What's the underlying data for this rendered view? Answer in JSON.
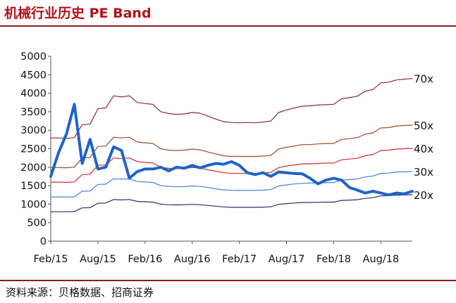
{
  "title": "机械行业历史 PE Band",
  "source": "资料来源：贝格数据、招商证券",
  "chart_data": {
    "type": "line",
    "x": [
      "Feb/15",
      "Mar/15",
      "Apr/15",
      "May/15",
      "Jun/15",
      "Jul/15",
      "Aug/15",
      "Sep/15",
      "Oct/15",
      "Nov/15",
      "Dec/15",
      "Jan/16",
      "Feb/16",
      "Mar/16",
      "Apr/16",
      "May/16",
      "Jun/16",
      "Jul/16",
      "Aug/16",
      "Sep/16",
      "Oct/16",
      "Nov/16",
      "Dec/16",
      "Jan/17",
      "Feb/17",
      "Mar/17",
      "Apr/17",
      "May/17",
      "Jun/17",
      "Jul/17",
      "Aug/17",
      "Sep/17",
      "Oct/17",
      "Nov/17",
      "Dec/17",
      "Jan/18",
      "Feb/18",
      "Mar/18",
      "Apr/18",
      "May/18",
      "Jun/18",
      "Jul/18",
      "Aug/18",
      "Sep/18",
      "Oct/18",
      "Nov/18",
      "Dec/18"
    ],
    "x_ticks": [
      "Feb/15",
      "Aug/15",
      "Feb/16",
      "Aug/16",
      "Feb/17",
      "Aug/17",
      "Feb/18",
      "Aug/18"
    ],
    "ylim": [
      0,
      5000
    ],
    "y_ticks": [
      "0",
      "500",
      "1000",
      "1500",
      "2000",
      "2500",
      "3000",
      "3500",
      "4000",
      "4500",
      "5000"
    ],
    "series": [
      {
        "name": "70x",
        "color": "#8b2a3a",
        "width": 1.2,
        "values": [
          2790,
          2790,
          2780,
          2800,
          3150,
          3160,
          3580,
          3600,
          3930,
          3900,
          3930,
          3750,
          3720,
          3700,
          3500,
          3450,
          3430,
          3440,
          3480,
          3460,
          3380,
          3300,
          3230,
          3210,
          3200,
          3210,
          3200,
          3220,
          3250,
          3480,
          3550,
          3600,
          3650,
          3660,
          3680,
          3690,
          3700,
          3850,
          3880,
          3920,
          4050,
          4100,
          4280,
          4300,
          4360,
          4380,
          4400
        ]
      },
      {
        "name": "50x",
        "color": "#9a4a2a",
        "width": 1.2,
        "values": [
          1990,
          1990,
          1985,
          2000,
          2250,
          2260,
          2560,
          2570,
          2810,
          2790,
          2810,
          2680,
          2660,
          2640,
          2500,
          2460,
          2450,
          2460,
          2490,
          2470,
          2410,
          2360,
          2310,
          2290,
          2290,
          2290,
          2290,
          2300,
          2320,
          2490,
          2540,
          2570,
          2610,
          2610,
          2630,
          2640,
          2640,
          2750,
          2770,
          2800,
          2890,
          2930,
          3060,
          3070,
          3110,
          3130,
          3140
        ]
      },
      {
        "name": "40x",
        "color": "#d92a2a",
        "width": 1.2,
        "values": [
          1595,
          1595,
          1590,
          1600,
          1800,
          1810,
          2050,
          2060,
          2250,
          2230,
          2250,
          2150,
          2130,
          2110,
          2000,
          1970,
          1960,
          1970,
          1990,
          1980,
          1930,
          1890,
          1850,
          1830,
          1830,
          1830,
          1830,
          1840,
          1860,
          1990,
          2030,
          2060,
          2090,
          2090,
          2100,
          2110,
          2110,
          2200,
          2220,
          2240,
          2310,
          2340,
          2450,
          2460,
          2490,
          2500,
          2510
        ]
      },
      {
        "name": "30x",
        "color": "#4a7fd8",
        "width": 1.2,
        "values": [
          1195,
          1195,
          1190,
          1200,
          1350,
          1355,
          1535,
          1540,
          1685,
          1675,
          1685,
          1610,
          1600,
          1585,
          1500,
          1480,
          1470,
          1475,
          1490,
          1480,
          1450,
          1415,
          1385,
          1375,
          1370,
          1375,
          1370,
          1380,
          1395,
          1490,
          1520,
          1545,
          1565,
          1570,
          1575,
          1580,
          1585,
          1650,
          1665,
          1680,
          1735,
          1760,
          1835,
          1840,
          1870,
          1875,
          1885
        ]
      },
      {
        "name": "20x",
        "color": "#24306a",
        "width": 1.2,
        "values": [
          795,
          795,
          795,
          800,
          900,
          905,
          1025,
          1030,
          1125,
          1115,
          1125,
          1075,
          1065,
          1055,
          1000,
          985,
          980,
          985,
          995,
          985,
          965,
          945,
          925,
          915,
          915,
          915,
          915,
          920,
          930,
          995,
          1015,
          1030,
          1045,
          1045,
          1050,
          1055,
          1055,
          1100,
          1110,
          1120,
          1155,
          1175,
          1225,
          1230,
          1245,
          1250,
          1255
        ]
      },
      {
        "name": "",
        "color": "#1f63c8",
        "width": 4,
        "values": [
          1750,
          2400,
          2900,
          3700,
          2100,
          2750,
          1950,
          2000,
          2550,
          2450,
          1700,
          1880,
          1950,
          1950,
          2000,
          1900,
          2000,
          1970,
          2050,
          1980,
          2050,
          2100,
          2080,
          2150,
          2050,
          1850,
          1800,
          1850,
          1750,
          1870,
          1850,
          1830,
          1820,
          1700,
          1550,
          1650,
          1700,
          1650,
          1450,
          1380,
          1300,
          1350,
          1300,
          1250,
          1300,
          1280,
          1350
        ]
      }
    ]
  }
}
